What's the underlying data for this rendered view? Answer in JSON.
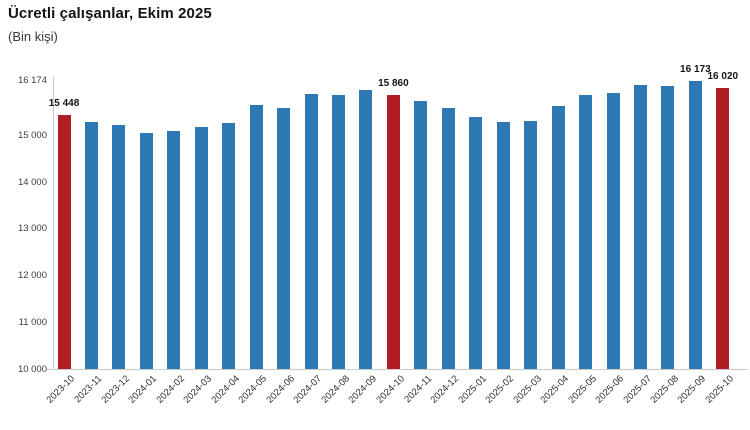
{
  "colors": {
    "bar": "#2e79b4",
    "highlight": "#b01e24",
    "axis": "#c9c9c9",
    "title_text": "#141414",
    "tick_text": "#3d3d3d"
  },
  "chart_data": {
    "type": "bar",
    "title": "Ücretli çalışanlar, Ekim 2025",
    "subtitle": "(Bin kişi)",
    "xlabel": "",
    "ylabel": "Bin kişi",
    "ylim": [
      10000,
      16174
    ],
    "grid": false,
    "legend": "none",
    "categories": [
      "2023-10",
      "2023-11",
      "2023-12",
      "2024-01",
      "2024-02",
      "2024-03",
      "2024-04",
      "2024-05",
      "2024-06",
      "2024-07",
      "2024-08",
      "2024-09",
      "2024-10",
      "2024-11",
      "2024-12",
      "2025-01",
      "2025-02",
      "2025-03",
      "2025-04",
      "2025-05",
      "2025-06",
      "2025-07",
      "2025-08",
      "2025-09",
      "2025-10"
    ],
    "values": [
      15448,
      15285,
      15230,
      15050,
      15090,
      15190,
      15265,
      15660,
      15590,
      15890,
      15870,
      15975,
      15860,
      15730,
      15585,
      15390,
      15285,
      15305,
      15640,
      15875,
      15920,
      16090,
      16070,
      16173,
      16020
    ],
    "highlight_indices": [
      0,
      12,
      24
    ],
    "data_labels": [
      {
        "index": 0,
        "label": "15 448"
      },
      {
        "index": 12,
        "label": "15 860"
      },
      {
        "index": 23,
        "label": "16 173"
      },
      {
        "index": 24,
        "label": "16 020"
      }
    ],
    "yticks": [
      {
        "value": 16174,
        "label": "16 174"
      },
      {
        "value": 15000,
        "label": "15 000"
      },
      {
        "value": 14000,
        "label": "14 000"
      },
      {
        "value": 13000,
        "label": "13 000"
      },
      {
        "value": 12000,
        "label": "12 000"
      },
      {
        "value": 11000,
        "label": "11 000"
      },
      {
        "value": 10000,
        "label": "10 000"
      }
    ]
  }
}
